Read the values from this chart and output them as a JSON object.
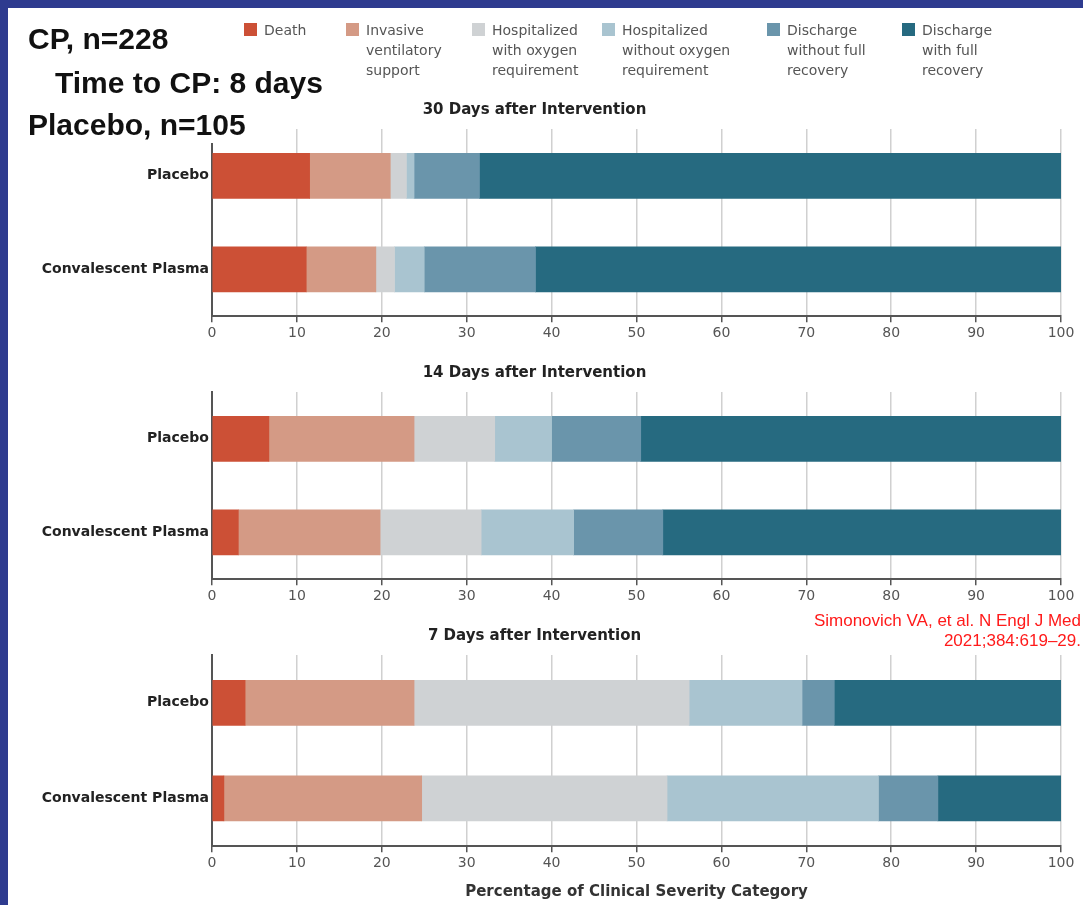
{
  "chart_data": [
    {
      "type": "bar",
      "orientation": "horizontal",
      "stacked": true,
      "title": "30 Days after Intervention",
      "categories": [
        "Placebo",
        "Convalescent Plasma"
      ],
      "series": [
        {
          "name": "Death",
          "color": "#cc5036",
          "values": [
            11.5,
            11.1
          ]
        },
        {
          "name": "Invasive ventilatory support",
          "color": "#d49a85",
          "values": [
            9.5,
            8.2
          ]
        },
        {
          "name": "Hospitalized with oxygen requirement",
          "color": "#cfd2d4",
          "values": [
            1.9,
            2.2
          ]
        },
        {
          "name": "Hospitalized without oxygen requirement",
          "color": "#a9c4d0",
          "values": [
            0.9,
            3.5
          ]
        },
        {
          "name": "Discharge without full recovery",
          "color": "#6a95ab",
          "values": [
            7.7,
            13.1
          ]
        },
        {
          "name": "Discharge with full recovery",
          "color": "#266a80",
          "values": [
            68.5,
            61.9
          ]
        }
      ],
      "xlim": [
        0,
        100
      ],
      "xticks": [
        0,
        10,
        20,
        30,
        40,
        50,
        60,
        70,
        80,
        90,
        100
      ],
      "grid": "x",
      "legend": "top",
      "annotations": [
        "CP, n=228",
        "Time to CP: 8 days",
        "Placebo, n=105"
      ]
    },
    {
      "type": "bar",
      "orientation": "horizontal",
      "stacked": true,
      "title": "14 Days after Intervention",
      "categories": [
        "Placebo",
        "Convalescent Plasma"
      ],
      "series": [
        {
          "color": "#cc5036",
          "values": [
            6.7,
            3.1
          ]
        },
        {
          "color": "#d49a85",
          "values": [
            17.1,
            16.7
          ]
        },
        {
          "color": "#cfd2d4",
          "values": [
            9.5,
            11.9
          ]
        },
        {
          "color": "#a9c4d0",
          "values": [
            6.7,
            10.9
          ]
        },
        {
          "color": "#6a95ab",
          "values": [
            10.5,
            10.5
          ]
        },
        {
          "color": "#266a80",
          "values": [
            49.5,
            46.9
          ]
        }
      ],
      "xlim": [
        0,
        100
      ],
      "xticks": [
        0,
        10,
        20,
        30,
        40,
        50,
        60,
        70,
        80,
        90,
        100
      ],
      "grid": "x",
      "annotations": [
        "Simonovich VA, et al. N Engl J Med 2021;384:619–29."
      ]
    },
    {
      "type": "bar",
      "orientation": "horizontal",
      "stacked": true,
      "title": "7 Days after Intervention",
      "xlabel": "Percentage of Clinical Severity Category",
      "categories": [
        "Placebo",
        "Convalescent Plasma"
      ],
      "series": [
        {
          "color": "#cc5036",
          "values": [
            3.9,
            1.4
          ]
        },
        {
          "color": "#d49a85",
          "values": [
            19.9,
            23.3
          ]
        },
        {
          "color": "#cfd2d4",
          "values": [
            32.4,
            28.9
          ]
        },
        {
          "color": "#a9c4d0",
          "values": [
            13.3,
            24.9
          ]
        },
        {
          "color": "#6a95ab",
          "values": [
            3.8,
            7.0
          ]
        },
        {
          "color": "#266a80",
          "values": [
            26.7,
            14.5
          ]
        }
      ],
      "xlim": [
        0,
        100
      ],
      "xticks": [
        0,
        10,
        20,
        30,
        40,
        50,
        60,
        70,
        80,
        90,
        100
      ],
      "grid": "x"
    }
  ]
}
